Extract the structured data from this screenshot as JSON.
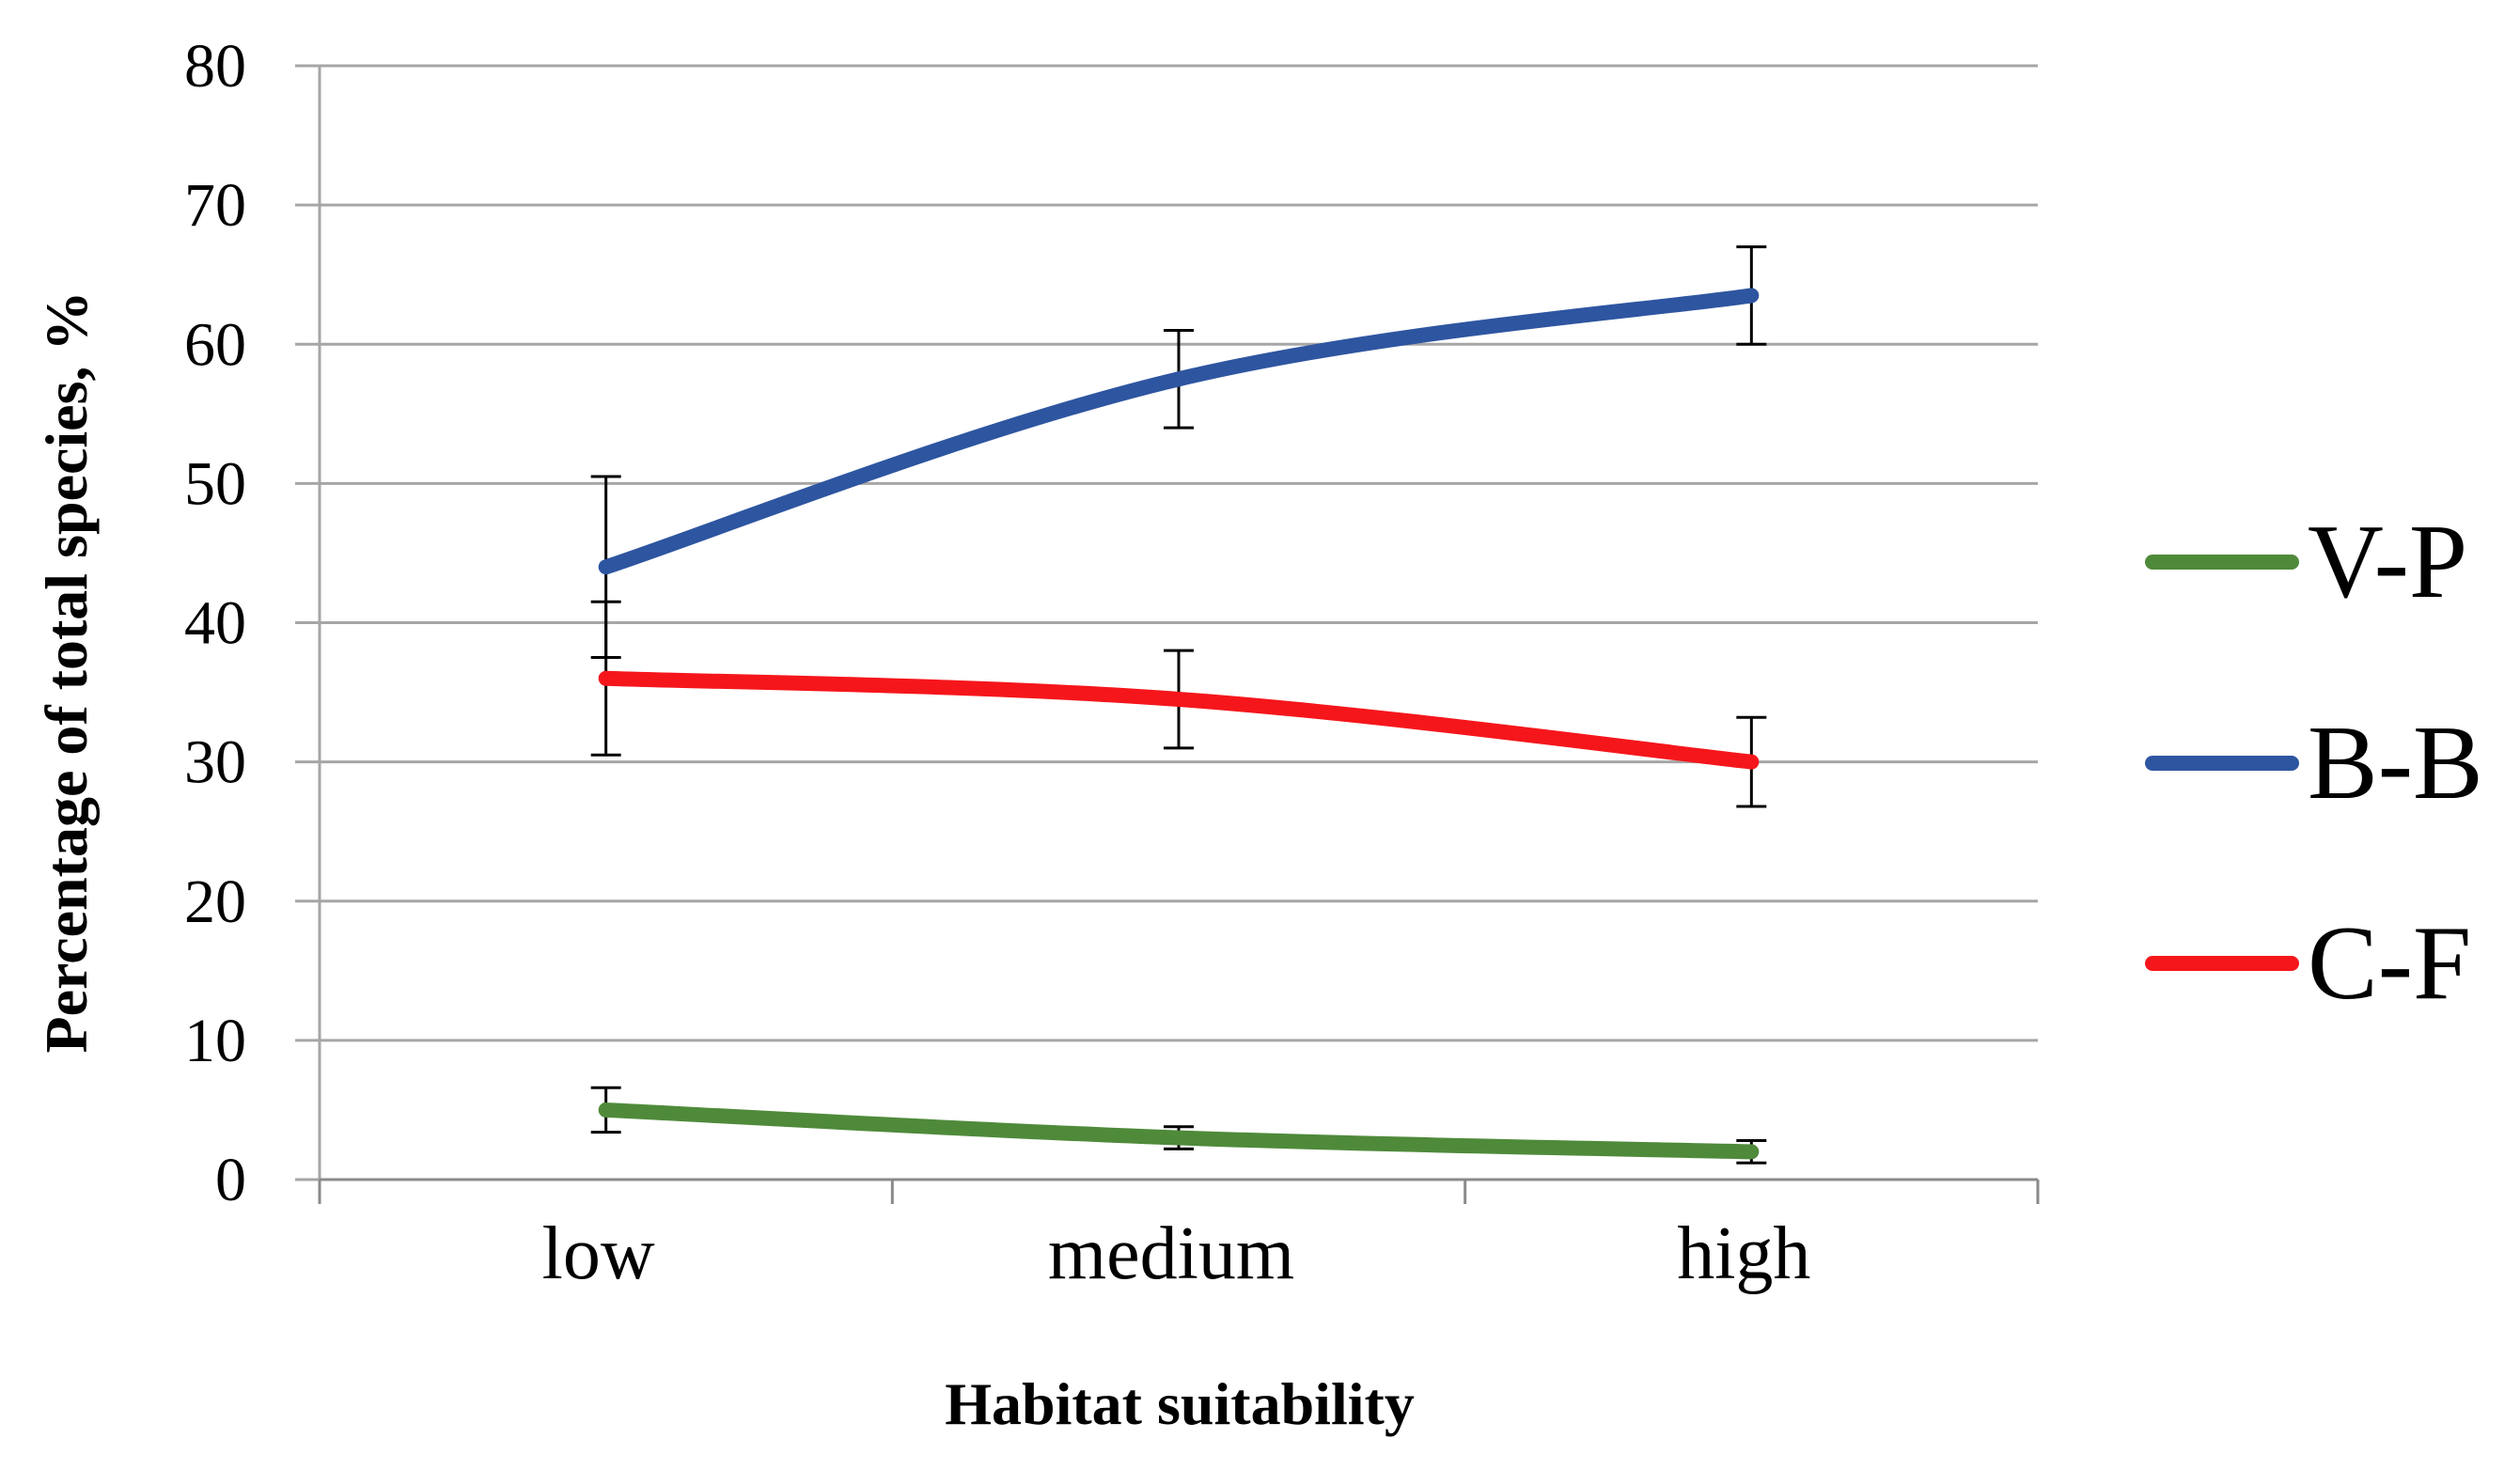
{
  "chart_data": {
    "type": "line",
    "title": "",
    "xlabel": "Habitat suitability",
    "ylabel": "Percentage of total species, %",
    "categories": [
      "low",
      "medium",
      "high"
    ],
    "ylim": [
      0,
      80
    ],
    "yticks": [
      0,
      10,
      20,
      30,
      40,
      50,
      60,
      70,
      80
    ],
    "grid": true,
    "legend_position": "right",
    "series": [
      {
        "name": "V-P",
        "color": "#4f8a3a",
        "values": [
          5,
          3,
          2
        ],
        "error": [
          1.6,
          0.8,
          0.8
        ]
      },
      {
        "name": "B-B",
        "color": "#2e55a0",
        "values": [
          44,
          57.5,
          63.5
        ],
        "error": [
          6.5,
          3.5,
          3.5
        ]
      },
      {
        "name": "C-F",
        "color": "#f5161b",
        "values": [
          36,
          34.5,
          30
        ],
        "error": [
          5.5,
          3.5,
          3.2
        ]
      }
    ]
  }
}
